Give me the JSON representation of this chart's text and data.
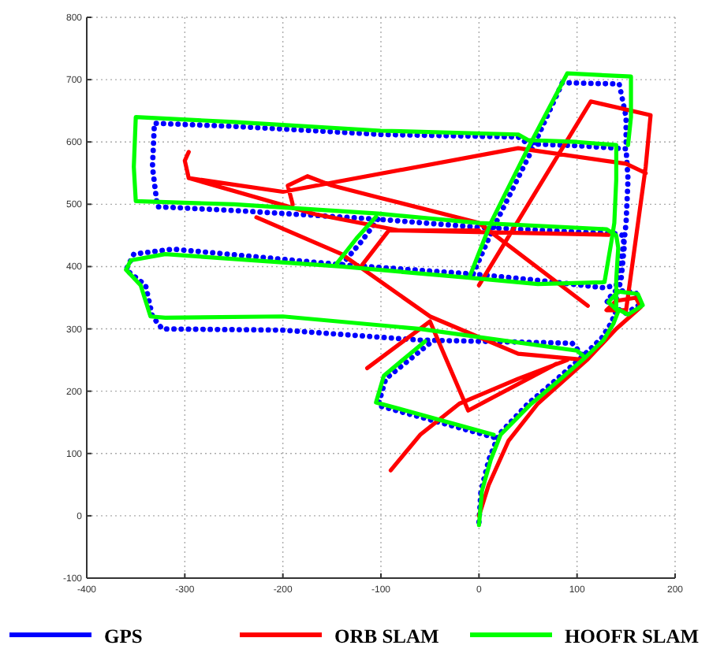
{
  "chart_data": {
    "type": "line",
    "xlim": [
      -400,
      200
    ],
    "ylim": [
      -100,
      800
    ],
    "xticks": [
      -400,
      -300,
      -200,
      -100,
      0,
      100,
      200
    ],
    "yticks": [
      -100,
      0,
      100,
      200,
      300,
      400,
      500,
      600,
      700,
      800
    ],
    "grid": true,
    "legend": "bottom",
    "series": [
      {
        "name": "GPS",
        "color": "#0000ff",
        "line_style": "dotted",
        "x": [
          0,
          2,
          10,
          20,
          50,
          80,
          105,
          125,
          135,
          140,
          130,
          140,
          160,
          165,
          150,
          138,
          145,
          148,
          147,
          138,
          0,
          -103,
          -250,
          -328,
          -333,
          -331,
          -250,
          -100,
          40,
          50,
          100,
          150,
          152,
          150,
          148,
          140,
          127,
          60,
          -6,
          15,
          53,
          85,
          143,
          150,
          150,
          null,
          -6,
          -140,
          -312,
          -352,
          -360,
          -340,
          -333,
          -323,
          -200,
          -60,
          95,
          106,
          null,
          15,
          -103,
          -95,
          -50,
          null,
          -140,
          -120,
          -103
        ],
        "values": [
          -10,
          40,
          90,
          130,
          180,
          220,
          255,
          285,
          310,
          330,
          345,
          362,
          358,
          340,
          325,
          335,
          380,
          430,
          450,
          453,
          463,
          476,
          490,
          496,
          560,
          630,
          625,
          612,
          608,
          597,
          594,
          589,
          540,
          470,
          440,
          370,
          366,
          378,
          388,
          463,
          584,
          695,
          693,
          640,
          589,
          null,
          388,
          403,
          428,
          420,
          395,
          370,
          320,
          300,
          298,
          282,
          277,
          257,
          null,
          126,
          177,
          220,
          277,
          null,
          403,
          440,
          476
        ]
      },
      {
        "name": "ORB SLAM",
        "color": "#ff0000",
        "line_style": "solid",
        "x": [
          0,
          10,
          30,
          60,
          110,
          140,
          165,
          160,
          140,
          130,
          150,
          170,
          175,
          114,
          0,
          null,
          -296,
          -300,
          -296,
          -200,
          40,
          150,
          170,
          null,
          -296,
          -167,
          -82,
          132,
          null,
          -190,
          -195,
          -175,
          -150,
          -100,
          0,
          111,
          null,
          -227,
          -140,
          -50,
          40,
          110,
          null,
          -114,
          -50,
          -11,
          79,
          null,
          -90,
          -60,
          -20,
          40,
          90,
          null,
          -119,
          -92,
          0
        ],
        "values": [
          0,
          50,
          120,
          180,
          250,
          300,
          335,
          350,
          345,
          330,
          330,
          560,
          643,
          665,
          370,
          null,
          584,
          570,
          542,
          520,
          590,
          565,
          550,
          null,
          542,
          484,
          458,
          451,
          null,
          500,
          530,
          545,
          530,
          510,
          470,
          337,
          null,
          479,
          420,
          320,
          260,
          250,
          null,
          237,
          312,
          169,
          244,
          null,
          73,
          130,
          180,
          220,
          250,
          null,
          403,
          458,
          458
        ]
      },
      {
        "name": "HOOFR SLAM",
        "color": "#00ff00",
        "line_style": "solid",
        "x": [
          0,
          3,
          12,
          22,
          52,
          82,
          107,
          127,
          137,
          142,
          132,
          142,
          162,
          167,
          152,
          140,
          140,
          142,
          140,
          130,
          0,
          -103,
          -250,
          -350,
          -352,
          -350,
          -250,
          -100,
          40,
          50,
          100,
          140,
          140,
          138,
          135,
          128,
          60,
          -10,
          12,
          50,
          90,
          155,
          155,
          152,
          null,
          -10,
          -140,
          -320,
          -355,
          -360,
          -345,
          -335,
          -320,
          -200,
          -60,
          100,
          106,
          null,
          15,
          -105,
          -97,
          -55,
          null,
          -145,
          -125,
          -105
        ],
        "values": [
          -15,
          40,
          90,
          130,
          178,
          218,
          252,
          282,
          308,
          328,
          343,
          360,
          356,
          338,
          323,
          333,
          380,
          430,
          450,
          460,
          470,
          485,
          500,
          505,
          560,
          640,
          632,
          618,
          612,
          603,
          600,
          595,
          540,
          470,
          440,
          375,
          372,
          382,
          470,
          590,
          710,
          705,
          640,
          595,
          null,
          382,
          400,
          420,
          410,
          395,
          370,
          320,
          318,
          320,
          300,
          265,
          257,
          null,
          130,
          182,
          225,
          280,
          null,
          405,
          445,
          480
        ]
      }
    ]
  }
}
